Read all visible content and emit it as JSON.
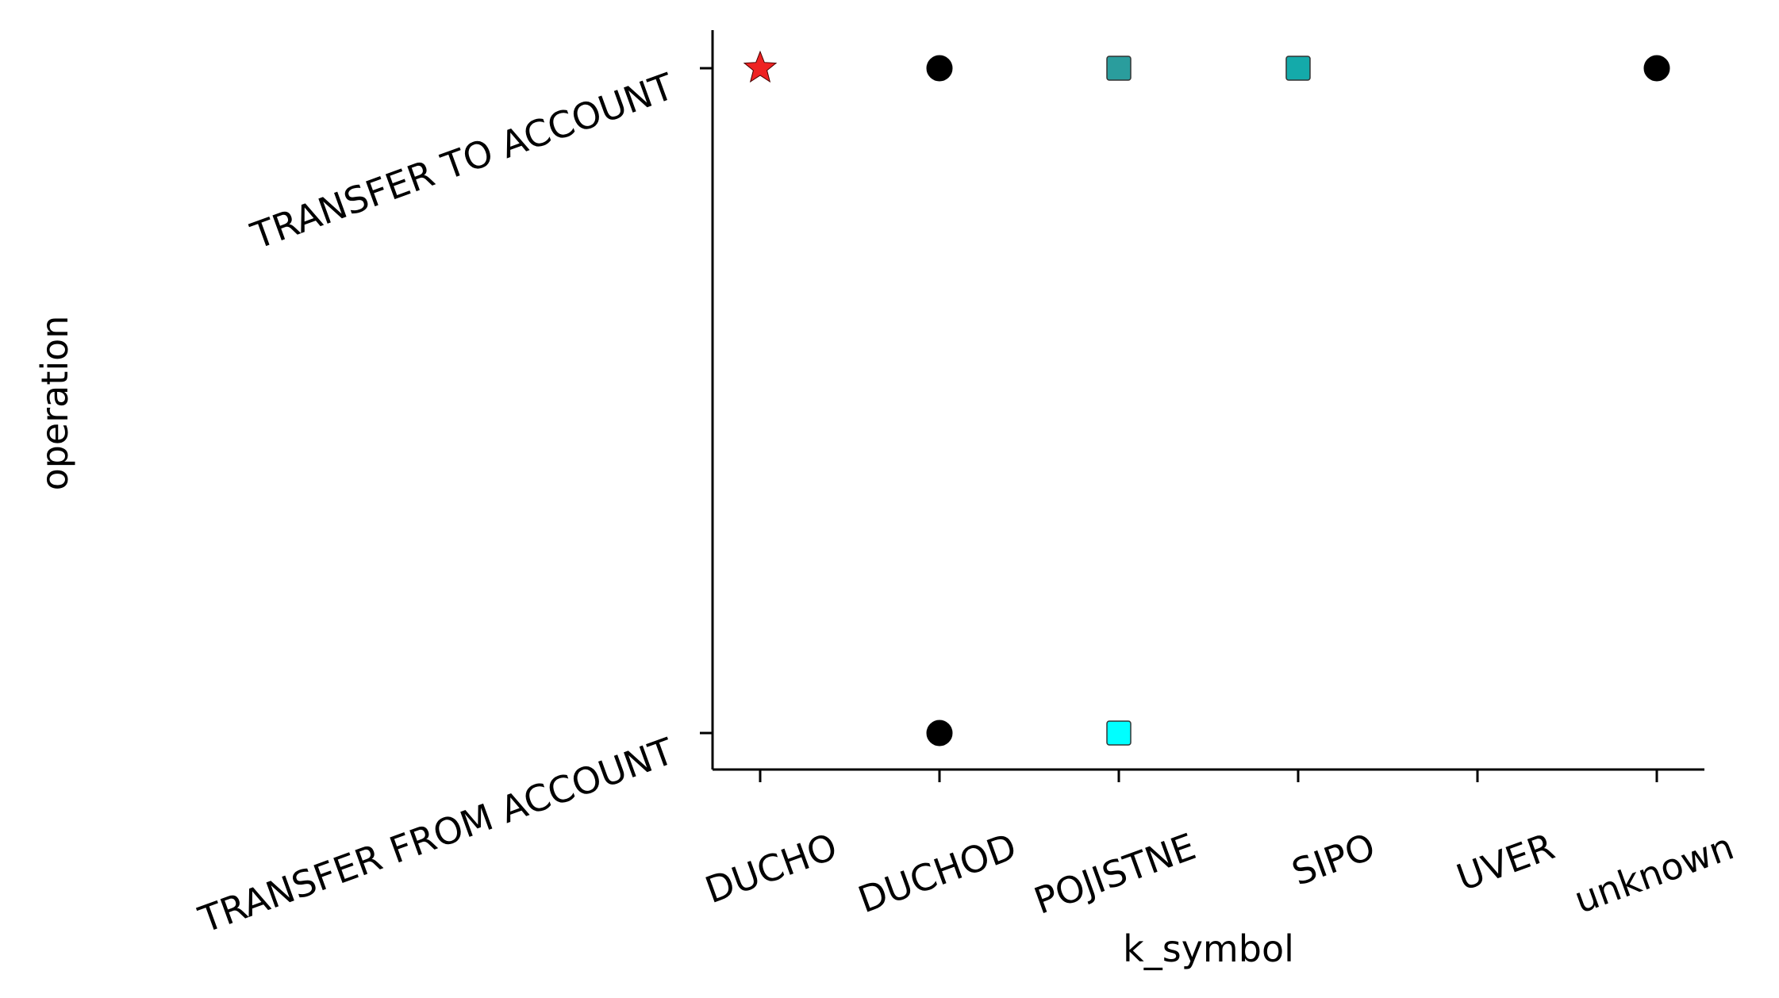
{
  "chart_data": {
    "type": "scatter",
    "xlabel": "k_symbol",
    "ylabel": "operation",
    "x_categories": [
      "DUCHO",
      "DUCHOD",
      "POJISTNE",
      "SIPO",
      "UVER",
      "unknown"
    ],
    "y_categories": [
      "TRANSFER FROM ACCOUNT",
      "TRANSFER TO ACCOUNT"
    ],
    "grid": false,
    "legend": "none",
    "points": [
      {
        "x": "DUCHO",
        "y": "TRANSFER TO ACCOUNT",
        "marker": "star",
        "color": "#ee2222"
      },
      {
        "x": "DUCHOD",
        "y": "TRANSFER TO ACCOUNT",
        "marker": "circle",
        "color": "#000000"
      },
      {
        "x": "POJISTNE",
        "y": "TRANSFER TO ACCOUNT",
        "marker": "square",
        "color": "#2a9d9d"
      },
      {
        "x": "SIPO",
        "y": "TRANSFER TO ACCOUNT",
        "marker": "square",
        "color": "#14aaaa"
      },
      {
        "x": "unknown",
        "y": "TRANSFER TO ACCOUNT",
        "marker": "circle",
        "color": "#000000"
      },
      {
        "x": "DUCHOD",
        "y": "TRANSFER FROM ACCOUNT",
        "marker": "circle",
        "color": "#000000"
      },
      {
        "x": "POJISTNE",
        "y": "TRANSFER FROM ACCOUNT",
        "marker": "square",
        "color": "#00ffff"
      }
    ]
  }
}
